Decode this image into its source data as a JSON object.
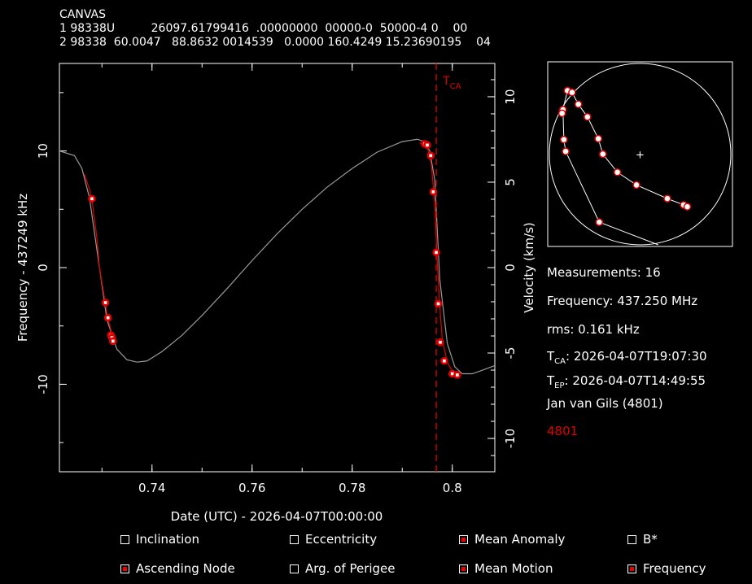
{
  "header": {
    "name": "CANVAS",
    "line1": "1 98338U          26097.61799416  .00000000  00000-0  50000-4 0    00",
    "line2": "2 98338  60.0047   88.8632 0014539   0.0000 160.4249 15.23690195    04"
  },
  "chart_data": {
    "type": "scatter",
    "xlabel": "Date (UTC) - 2026-04-07T00:00:00",
    "ylabel": "Frequency - 437249 kHz",
    "y2label": "Velocity (km/s)",
    "xlim": [
      0.7215,
      0.8085
    ],
    "ylim": [
      -17.5,
      17.5
    ],
    "y2lim": [
      -11.95,
      11.95
    ],
    "xticks": [
      0.74,
      0.76,
      0.78,
      0.8
    ],
    "xtick_labels": [
      "0.74",
      "0.76",
      "0.78",
      "0.8"
    ],
    "yticks": [
      -10,
      0,
      10
    ],
    "ytick_labels": [
      "-10",
      "0",
      "10"
    ],
    "y2ticks": [
      -10,
      -5,
      0,
      5,
      10
    ],
    "y2tick_labels": [
      "-10",
      "-5",
      "0",
      "5",
      "10"
    ],
    "tca_x": 0.7968,
    "tca_label": "T",
    "tca_sub": "CA",
    "model_curve_gray": {
      "x": [
        0.7215,
        0.7245,
        0.726,
        0.7275,
        0.7295,
        0.731,
        0.733,
        0.735,
        0.737,
        0.739,
        0.742,
        0.746,
        0.75,
        0.755,
        0.76,
        0.765,
        0.77,
        0.775,
        0.78,
        0.785,
        0.79,
        0.793,
        0.7945,
        0.7955,
        0.7965,
        0.7975,
        0.799,
        0.8005,
        0.802,
        0.804,
        0.806,
        0.8085
      ],
      "y": [
        10.0,
        9.6,
        8.5,
        6.0,
        0.0,
        -4.5,
        -7.0,
        -7.9,
        -8.1,
        -8.0,
        -7.2,
        -5.8,
        -4.1,
        -1.8,
        0.6,
        2.9,
        5.0,
        6.9,
        8.5,
        9.9,
        10.8,
        11.0,
        10.8,
        10.0,
        7.5,
        -1.0,
        -6.5,
        -8.5,
        -9.1,
        -9.1,
        -8.8,
        -8.4
      ]
    },
    "model_curve_red": {
      "x": [
        0.7265,
        0.7275,
        0.728,
        0.729,
        0.7295,
        0.7305,
        0.7312,
        0.732,
        0.7325
      ],
      "y": [
        8.0,
        6.7,
        5.8,
        2.5,
        0.0,
        -2.6,
        -4.4,
        -5.7,
        -6.3
      ]
    },
    "model_curve_red2": {
      "x": [
        0.7935,
        0.795,
        0.7958,
        0.7965,
        0.797,
        0.7975,
        0.798,
        0.799,
        0.8,
        0.8012
      ],
      "y": [
        10.7,
        10.3,
        8.9,
        5.5,
        0.5,
        -3.3,
        -6.2,
        -8.1,
        -8.9,
        -9.2
      ]
    },
    "series": [
      {
        "x": [
          0.728,
          0.7307,
          0.7312,
          0.7318,
          0.732,
          0.7322,
          0.7945,
          0.795,
          0.7957,
          0.7962,
          0.7968,
          0.7972,
          0.7976,
          0.7984,
          0.8,
          0.801
        ],
        "y": [
          5.9,
          -3.0,
          -4.3,
          -5.8,
          -6.0,
          -6.3,
          10.6,
          10.5,
          9.6,
          6.5,
          1.3,
          -3.1,
          -6.4,
          -8.0,
          -9.1,
          -9.2
        ]
      }
    ],
    "inset": {
      "center_mark": "+",
      "points": [
        [
          -0.8,
          0.7
        ],
        [
          -0.75,
          0.68
        ],
        [
          -0.68,
          0.55
        ],
        [
          -0.58,
          0.41
        ],
        [
          -0.46,
          0.17
        ],
        [
          -0.41,
          0.0
        ],
        [
          -0.25,
          -0.2
        ],
        [
          -0.04,
          -0.34
        ],
        [
          0.3,
          -0.49
        ],
        [
          0.48,
          -0.56
        ],
        [
          0.52,
          -0.58
        ],
        [
          -0.45,
          -0.75
        ],
        [
          -0.85,
          0.49
        ],
        [
          -0.86,
          0.45
        ],
        [
          -0.84,
          0.16
        ],
        [
          -0.82,
          0.03
        ]
      ]
    }
  },
  "info": {
    "measurements": "Measurements: 16",
    "frequency": "Frequency: 437.250 MHz",
    "rms": "rms: 0.161 kHz",
    "tca_prefix": "T",
    "tca_sub": "CA",
    "tca_value": ": 2026-04-07T19:07:30",
    "tep_prefix": "T",
    "tep_sub": "EP",
    "tep_value": ": 2026-04-07T14:49:55",
    "observer": "Jan van Gils (4801)",
    "site": "4801"
  },
  "checkboxes": [
    {
      "label": "Inclination",
      "checked": false
    },
    {
      "label": "Eccentricity",
      "checked": false
    },
    {
      "label": "Mean Anomaly",
      "checked": true
    },
    {
      "label": "B*",
      "checked": false
    },
    {
      "label": "Ascending Node",
      "checked": true
    },
    {
      "label": "Arg. of Perigee",
      "checked": false
    },
    {
      "label": "Mean Motion",
      "checked": true
    },
    {
      "label": "Frequency",
      "checked": true
    }
  ],
  "colors": {
    "axis": "#ffffff",
    "model": "#9a9a9a",
    "fit": "#e00000",
    "point_fill": "#ffffff",
    "point_edge": "#e00000",
    "site": "#e00000"
  }
}
